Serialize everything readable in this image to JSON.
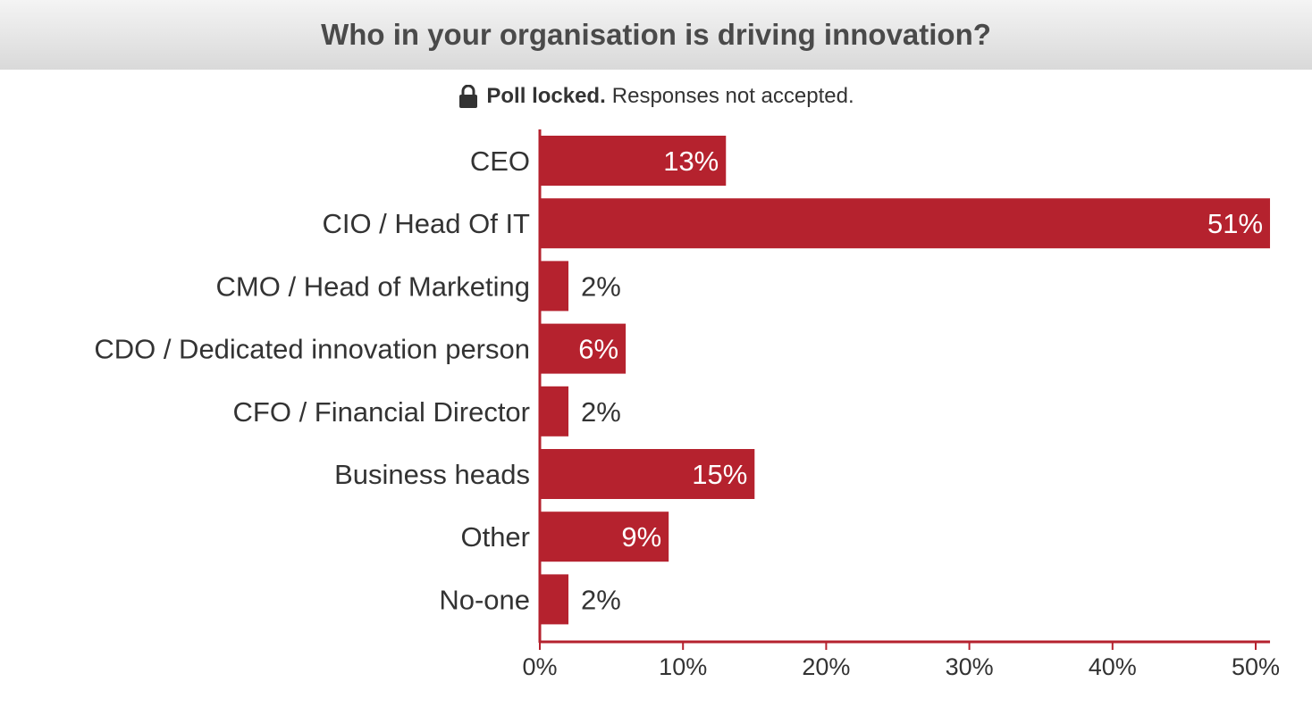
{
  "title": "Who in your organisation is driving innovation?",
  "status": {
    "icon": "lock-icon",
    "bold_text": "Poll locked.",
    "text": "Responses not accepted."
  },
  "colors": {
    "bar": "#b5222e",
    "axis": "#b5222e",
    "label_inside": "#ffffff",
    "label_outside": "#333333"
  },
  "chart_data": {
    "type": "bar",
    "orientation": "horizontal",
    "title": "Who in your organisation is driving innovation?",
    "categories": [
      "CEO",
      "CIO / Head Of IT",
      "CMO / Head of Marketing",
      "CDO / Dedicated innovation person",
      "CFO / Financial Director",
      "Business heads",
      "Other",
      "No-one"
    ],
    "values": [
      13,
      51,
      2,
      6,
      2,
      15,
      9,
      2
    ],
    "value_labels": [
      "13%",
      "51%",
      "2%",
      "6%",
      "2%",
      "15%",
      "9%",
      "2%"
    ],
    "xlim": [
      0,
      51
    ],
    "x_ticks": [
      0,
      10,
      20,
      30,
      40,
      50
    ],
    "x_tick_labels": [
      "0%",
      "10%",
      "20%",
      "30%",
      "40%",
      "50%"
    ],
    "xlabel": "",
    "ylabel": "",
    "grid": false,
    "legend": "none"
  }
}
